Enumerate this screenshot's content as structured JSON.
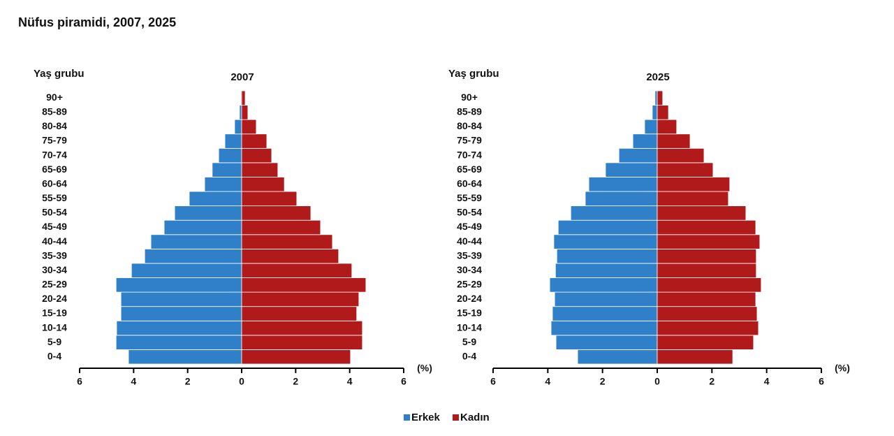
{
  "title": "Nüfus piramidi, 2007, 2025",
  "chart_data": [
    {
      "type": "pyramid",
      "title": "2007",
      "ylabel": "Yaş grubu",
      "xlabel": "(%)",
      "categories": [
        "0-4",
        "5-9",
        "10-14",
        "15-19",
        "20-24",
        "25-29",
        "30-34",
        "35-39",
        "40-44",
        "45-49",
        "50-54",
        "55-59",
        "60-64",
        "65-69",
        "70-74",
        "75-79",
        "80-84",
        "85-89",
        "90+"
      ],
      "series": [
        {
          "name": "Erkek",
          "color": "#2f80c8",
          "values": [
            -4.19,
            -4.65,
            -4.63,
            -4.47,
            -4.47,
            -4.65,
            -4.08,
            -3.59,
            -3.36,
            -2.87,
            -2.48,
            -1.94,
            -1.37,
            -1.09,
            -0.85,
            -0.62,
            -0.26,
            -0.08,
            -0.03
          ]
        },
        {
          "name": "Kadın",
          "color": "#b11a1a",
          "values": [
            4.03,
            4.47,
            4.47,
            4.26,
            4.34,
            4.6,
            4.08,
            3.59,
            3.36,
            2.92,
            2.56,
            2.04,
            1.58,
            1.34,
            1.11,
            0.93,
            0.54,
            0.23,
            0.13
          ]
        }
      ],
      "xlim": [
        -6,
        6
      ],
      "xticks": [
        {
          "value": -6,
          "label": "6"
        },
        {
          "value": -4,
          "label": "4"
        },
        {
          "value": -2,
          "label": "2"
        },
        0,
        2,
        4,
        6
      ]
    },
    {
      "type": "pyramid",
      "title": "2025",
      "ylabel": "Yaş grubu",
      "xlabel": "(%)",
      "categories": [
        "0-4",
        "5-9",
        "10-14",
        "15-19",
        "20-24",
        "25-29",
        "30-34",
        "35-39",
        "40-44",
        "45-49",
        "50-54",
        "55-59",
        "60-64",
        "65-69",
        "70-74",
        "75-79",
        "80-84",
        "85-89",
        "90+"
      ],
      "series": [
        {
          "name": "Erkek",
          "color": "#2f80c8",
          "values": [
            -2.91,
            -3.7,
            -3.88,
            -3.83,
            -3.75,
            -3.93,
            -3.72,
            -3.67,
            -3.78,
            -3.62,
            -3.16,
            -2.63,
            -2.5,
            -1.89,
            -1.4,
            -0.89,
            -0.46,
            -0.18,
            -0.08
          ]
        },
        {
          "name": "Kadın",
          "color": "#b11a1a",
          "values": [
            2.76,
            3.52,
            3.7,
            3.65,
            3.6,
            3.8,
            3.62,
            3.62,
            3.75,
            3.6,
            3.24,
            2.6,
            2.65,
            2.04,
            1.71,
            1.2,
            0.71,
            0.41,
            0.2
          ]
        }
      ],
      "xlim": [
        -6,
        6
      ],
      "xticks": [
        {
          "value": -6,
          "label": "6"
        },
        {
          "value": -4,
          "label": "4"
        },
        {
          "value": -2,
          "label": "2"
        },
        0,
        2,
        4,
        6
      ]
    }
  ]
}
